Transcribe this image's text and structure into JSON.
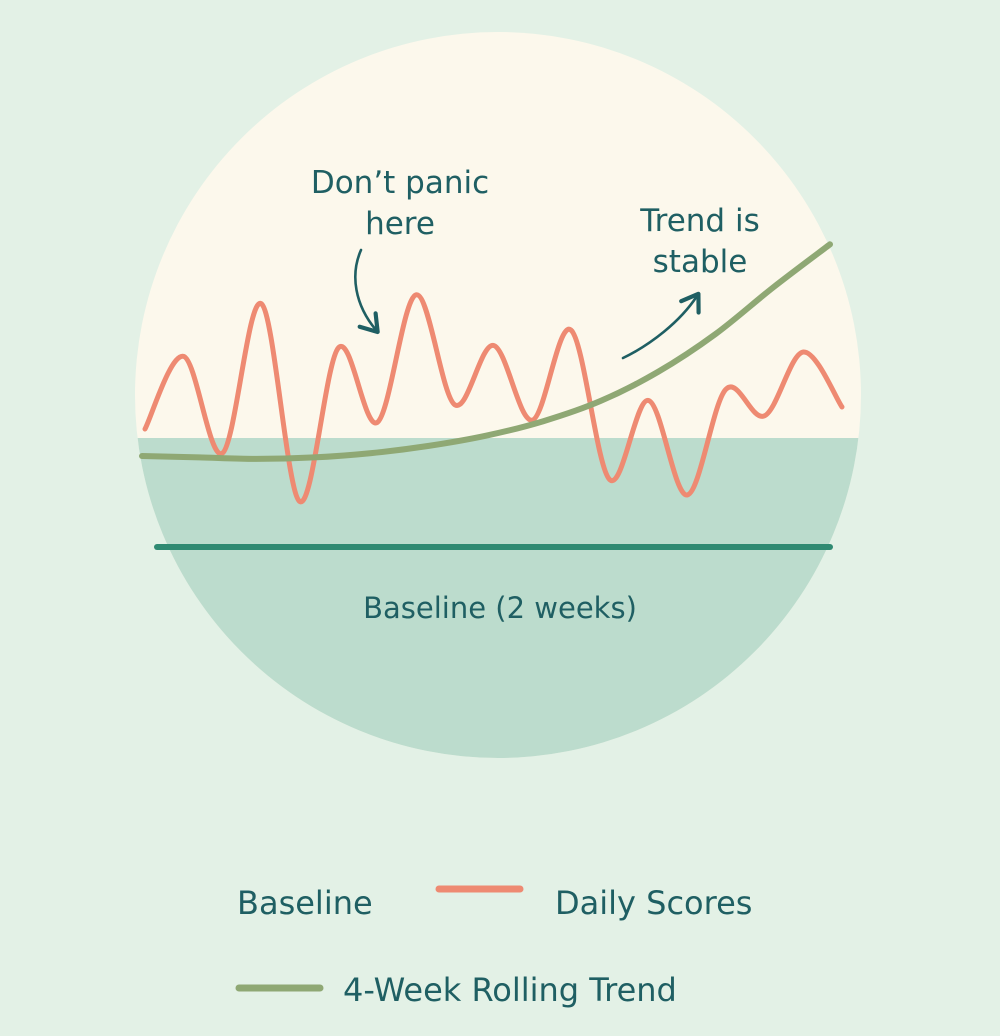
{
  "chart_data": {
    "type": "line",
    "title": "",
    "xlabel": "",
    "ylabel": "",
    "grid": false,
    "legend_placement": "bottom",
    "baseline": {
      "name": "Baseline",
      "label": "Baseline (2 weeks)"
    },
    "series": [
      {
        "name": "Daily Scores",
        "color": "#ee8a72",
        "values": [
          0.5,
          3.8,
          -0.6,
          6.2,
          -2.8,
          4.2,
          0.8,
          6.6,
          1.6,
          4.3,
          0.9,
          5.0,
          -1.8,
          1.8,
          -2.5,
          2.3,
          1.1,
          4.0,
          1.5
        ]
      },
      {
        "name": "4-Week Rolling Trend",
        "color": "#8fa874",
        "values": [
          0.0,
          -0.05,
          -0.1,
          -0.05,
          0.1,
          0.35,
          0.7,
          1.2,
          1.9,
          2.9,
          4.2,
          5.8,
          7.3
        ]
      }
    ],
    "annotations": [
      {
        "text_lines": [
          "Don’t panic",
          "here"
        ]
      },
      {
        "text_lines": [
          "Trend is",
          "stable"
        ]
      }
    ]
  },
  "colors": {
    "page_background": "#e3f1e6",
    "circle_upper": "#fcf8ec",
    "circle_lower": "#bcdccd",
    "baseline": "#2f8a72",
    "text": "#1f5f63",
    "daily": "#ee8a72",
    "trend": "#8fa874"
  },
  "legend": {
    "baseline": "Baseline",
    "daily": "Daily Scores",
    "trend": "4-Week Rolling Trend"
  }
}
